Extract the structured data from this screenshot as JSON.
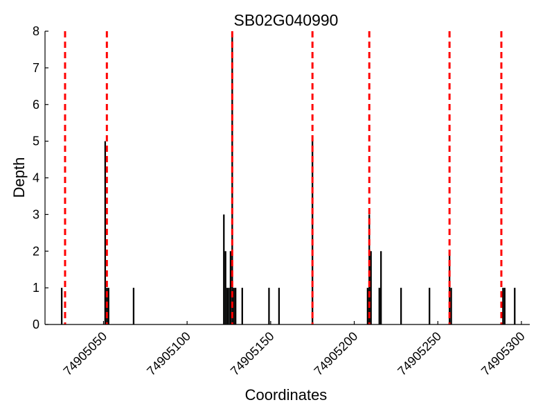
{
  "chart_data": {
    "type": "bar",
    "title": "SB02G040990",
    "xlabel": "Coordinates",
    "ylabel": "Depth",
    "xlim": [
      74905015,
      74905305
    ],
    "ylim": [
      0,
      8
    ],
    "x_ticks": [
      74905050,
      74905100,
      74905150,
      74905200,
      74905250,
      74905300
    ],
    "y_ticks": [
      0,
      1,
      2,
      3,
      4,
      5,
      6,
      7,
      8
    ],
    "grid": false,
    "bar_color": "#000000",
    "series": [
      {
        "values": [
          {
            "x": 74905025,
            "y": 1
          },
          {
            "x": 74905051,
            "y": 5
          },
          {
            "x": 74905052,
            "y": 1
          },
          {
            "x": 74905053,
            "y": 1
          },
          {
            "x": 74905068,
            "y": 1
          },
          {
            "x": 74905122,
            "y": 3
          },
          {
            "x": 74905123,
            "y": 2
          },
          {
            "x": 74905124,
            "y": 1
          },
          {
            "x": 74905125,
            "y": 1
          },
          {
            "x": 74905126,
            "y": 2
          },
          {
            "x": 74905127,
            "y": 8
          },
          {
            "x": 74905128,
            "y": 1
          },
          {
            "x": 74905129,
            "y": 1
          },
          {
            "x": 74905133,
            "y": 1
          },
          {
            "x": 74905149,
            "y": 1
          },
          {
            "x": 74905155,
            "y": 1
          },
          {
            "x": 74905175,
            "y": 5
          },
          {
            "x": 74905208,
            "y": 1
          },
          {
            "x": 74905209,
            "y": 3
          },
          {
            "x": 74905210,
            "y": 2
          },
          {
            "x": 74905215,
            "y": 1
          },
          {
            "x": 74905216,
            "y": 2
          },
          {
            "x": 74905228,
            "y": 1
          },
          {
            "x": 74905245,
            "y": 1
          },
          {
            "x": 74905257,
            "y": 2
          },
          {
            "x": 74905258,
            "y": 1
          },
          {
            "x": 74905289,
            "y": 1
          },
          {
            "x": 74905290,
            "y": 1
          },
          {
            "x": 74905296,
            "y": 1
          }
        ]
      }
    ],
    "reference_lines": {
      "style": "dashed",
      "color": "#ff0000",
      "x": [
        74905027,
        74905052,
        74905127,
        74905175,
        74905209,
        74905257,
        74905288
      ]
    }
  }
}
